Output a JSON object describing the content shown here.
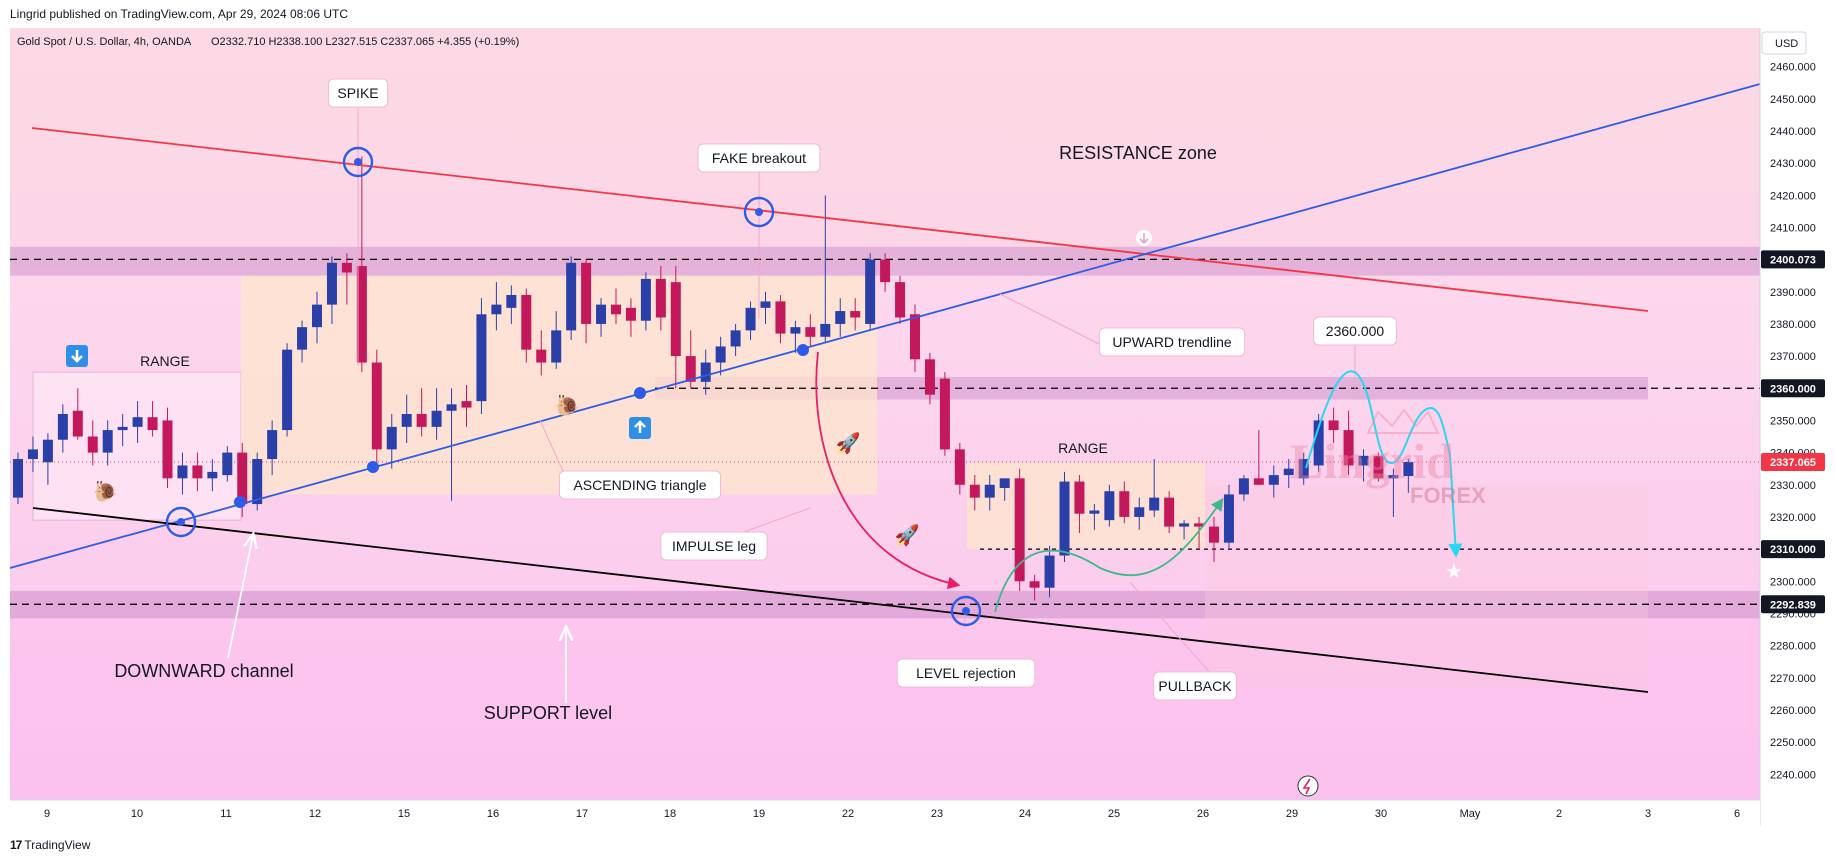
{
  "header": {
    "published_by": "Lingrid published on TradingView.com, Apr 29, 2024 08:06 UTC"
  },
  "footer": {
    "logo_text": "TradingView"
  },
  "chart_data": {
    "type": "candlestick",
    "symbol_line": "Gold Spot / U.S. Dollar, 4h, OANDA",
    "ohlc_line": "O2332.710  H2338.100  L2327.515  C2337.065  +4.355 (+0.19%)",
    "currency": "USD",
    "ylim": [
      2232,
      2472
    ],
    "y_ticks": [
      2240,
      2250,
      2260,
      2270,
      2280,
      2290,
      2300,
      2310,
      2320,
      2330,
      2340,
      2350,
      2360,
      2370,
      2380,
      2390,
      2400,
      2410,
      2420,
      2430,
      2440,
      2450,
      2460
    ],
    "x_ticks": [
      "9",
      "10",
      "11",
      "12",
      "15",
      "16",
      "17",
      "18",
      "19",
      "22",
      "23",
      "24",
      "25",
      "26",
      "29",
      "30",
      "May",
      "2",
      "3",
      "6"
    ],
    "price_labels": [
      {
        "value": 2400.073,
        "text": "2400.073",
        "style": "dark"
      },
      {
        "value": 2360.0,
        "text": "2360.000",
        "style": "dark"
      },
      {
        "value": 2337.065,
        "text": "2337.065",
        "style": "red"
      },
      {
        "value": 2310.0,
        "text": "2310.000",
        "style": "dark"
      },
      {
        "value": 2292.839,
        "text": "2292.839",
        "style": "dark"
      }
    ],
    "colors": {
      "bull": "#2a40a8",
      "bear": "#c3185c",
      "resistance_line": "#f23645",
      "trendline": "#2f5ce6",
      "channel_line": "#000000",
      "projection": "#29d8f0",
      "pullback_arrow": "#3fb88a",
      "impulse_arrow": "#e91e63"
    },
    "candles": [
      {
        "o": 2326,
        "h": 2340,
        "l": 2324,
        "c": 2338
      },
      {
        "o": 2338,
        "h": 2345,
        "l": 2334,
        "c": 2341
      },
      {
        "o": 2337,
        "h": 2346,
        "l": 2330,
        "c": 2344
      },
      {
        "o": 2344,
        "h": 2355,
        "l": 2340,
        "c": 2352
      },
      {
        "o": 2353,
        "h": 2360,
        "l": 2344,
        "c": 2345
      },
      {
        "o": 2345,
        "h": 2350,
        "l": 2336,
        "c": 2340
      },
      {
        "o": 2340,
        "h": 2350,
        "l": 2336,
        "c": 2347
      },
      {
        "o": 2347,
        "h": 2352,
        "l": 2342,
        "c": 2348
      },
      {
        "o": 2348,
        "h": 2356,
        "l": 2343,
        "c": 2351
      },
      {
        "o": 2351,
        "h": 2356,
        "l": 2345,
        "c": 2347
      },
      {
        "o": 2350,
        "h": 2354,
        "l": 2329,
        "c": 2332
      },
      {
        "o": 2332,
        "h": 2340,
        "l": 2327,
        "c": 2336
      },
      {
        "o": 2336,
        "h": 2340,
        "l": 2328,
        "c": 2332
      },
      {
        "o": 2332,
        "h": 2338,
        "l": 2328,
        "c": 2334
      },
      {
        "o": 2333,
        "h": 2342,
        "l": 2331,
        "c": 2340
      },
      {
        "o": 2340,
        "h": 2343,
        "l": 2320,
        "c": 2324
      },
      {
        "o": 2324,
        "h": 2340,
        "l": 2322,
        "c": 2338
      },
      {
        "o": 2338,
        "h": 2350,
        "l": 2333,
        "c": 2347
      },
      {
        "o": 2347,
        "h": 2374,
        "l": 2345,
        "c": 2372
      },
      {
        "o": 2372,
        "h": 2381,
        "l": 2368,
        "c": 2379
      },
      {
        "o": 2379,
        "h": 2390,
        "l": 2374,
        "c": 2386
      },
      {
        "o": 2386,
        "h": 2401,
        "l": 2380,
        "c": 2399
      },
      {
        "o": 2399,
        "h": 2402,
        "l": 2386,
        "c": 2396
      },
      {
        "o": 2398,
        "h": 2432,
        "l": 2365,
        "c": 2368
      },
      {
        "o": 2368,
        "h": 2372,
        "l": 2337,
        "c": 2341
      },
      {
        "o": 2341,
        "h": 2352,
        "l": 2335,
        "c": 2348
      },
      {
        "o": 2348,
        "h": 2358,
        "l": 2343,
        "c": 2352
      },
      {
        "o": 2352,
        "h": 2360,
        "l": 2345,
        "c": 2348
      },
      {
        "o": 2348,
        "h": 2360,
        "l": 2344,
        "c": 2353
      },
      {
        "o": 2353,
        "h": 2360,
        "l": 2325,
        "c": 2355
      },
      {
        "o": 2356,
        "h": 2361,
        "l": 2348,
        "c": 2354
      },
      {
        "o": 2356,
        "h": 2388,
        "l": 2352,
        "c": 2383
      },
      {
        "o": 2383,
        "h": 2393,
        "l": 2378,
        "c": 2386
      },
      {
        "o": 2385,
        "h": 2392,
        "l": 2380,
        "c": 2389
      },
      {
        "o": 2389,
        "h": 2391,
        "l": 2368,
        "c": 2372
      },
      {
        "o": 2372,
        "h": 2378,
        "l": 2364,
        "c": 2368
      },
      {
        "o": 2368,
        "h": 2384,
        "l": 2366,
        "c": 2378
      },
      {
        "o": 2378,
        "h": 2401,
        "l": 2375,
        "c": 2399
      },
      {
        "o": 2399,
        "h": 2400,
        "l": 2374,
        "c": 2380
      },
      {
        "o": 2380,
        "h": 2388,
        "l": 2376,
        "c": 2386
      },
      {
        "o": 2386,
        "h": 2391,
        "l": 2380,
        "c": 2383
      },
      {
        "o": 2385,
        "h": 2388,
        "l": 2376,
        "c": 2381
      },
      {
        "o": 2381,
        "h": 2396,
        "l": 2378,
        "c": 2394
      },
      {
        "o": 2394,
        "h": 2398,
        "l": 2378,
        "c": 2382
      },
      {
        "o": 2393,
        "h": 2398,
        "l": 2360,
        "c": 2370
      },
      {
        "o": 2370,
        "h": 2378,
        "l": 2360,
        "c": 2362
      },
      {
        "o": 2362,
        "h": 2372,
        "l": 2358,
        "c": 2368
      },
      {
        "o": 2368,
        "h": 2376,
        "l": 2364,
        "c": 2373
      },
      {
        "o": 2373,
        "h": 2380,
        "l": 2370,
        "c": 2378
      },
      {
        "o": 2378,
        "h": 2387,
        "l": 2375,
        "c": 2385
      },
      {
        "o": 2385,
        "h": 2390,
        "l": 2380,
        "c": 2387
      },
      {
        "o": 2387,
        "h": 2389,
        "l": 2374,
        "c": 2377
      },
      {
        "o": 2377,
        "h": 2381,
        "l": 2371,
        "c": 2379
      },
      {
        "o": 2379,
        "h": 2383,
        "l": 2373,
        "c": 2376
      },
      {
        "o": 2376,
        "h": 2420,
        "l": 2374,
        "c": 2380
      },
      {
        "o": 2380,
        "h": 2388,
        "l": 2376,
        "c": 2384
      },
      {
        "o": 2384,
        "h": 2388,
        "l": 2378,
        "c": 2382
      },
      {
        "o": 2380,
        "h": 2402,
        "l": 2378,
        "c": 2400
      },
      {
        "o": 2400,
        "h": 2402,
        "l": 2390,
        "c": 2393
      },
      {
        "o": 2393,
        "h": 2395,
        "l": 2380,
        "c": 2382
      },
      {
        "o": 2383,
        "h": 2386,
        "l": 2365,
        "c": 2369
      },
      {
        "o": 2369,
        "h": 2371,
        "l": 2355,
        "c": 2358
      },
      {
        "o": 2363,
        "h": 2365,
        "l": 2339,
        "c": 2341
      },
      {
        "o": 2341,
        "h": 2343,
        "l": 2327,
        "c": 2330
      },
      {
        "o": 2330,
        "h": 2333,
        "l": 2322,
        "c": 2326
      },
      {
        "o": 2326,
        "h": 2333,
        "l": 2322,
        "c": 2330
      },
      {
        "o": 2329,
        "h": 2332,
        "l": 2325,
        "c": 2332
      },
      {
        "o": 2332,
        "h": 2335,
        "l": 2297,
        "c": 2300
      },
      {
        "o": 2300,
        "h": 2302,
        "l": 2294,
        "c": 2298
      },
      {
        "o": 2298,
        "h": 2311,
        "l": 2295,
        "c": 2308
      },
      {
        "o": 2308,
        "h": 2334,
        "l": 2306,
        "c": 2331
      },
      {
        "o": 2331,
        "h": 2333,
        "l": 2315,
        "c": 2321
      },
      {
        "o": 2321,
        "h": 2324,
        "l": 2316,
        "c": 2322
      },
      {
        "o": 2319,
        "h": 2330,
        "l": 2317,
        "c": 2328
      },
      {
        "o": 2328,
        "h": 2331,
        "l": 2318,
        "c": 2320
      },
      {
        "o": 2320,
        "h": 2326,
        "l": 2316,
        "c": 2323
      },
      {
        "o": 2322,
        "h": 2338,
        "l": 2320,
        "c": 2326
      },
      {
        "o": 2326,
        "h": 2328,
        "l": 2315,
        "c": 2317
      },
      {
        "o": 2317,
        "h": 2319,
        "l": 2313,
        "c": 2318
      },
      {
        "o": 2318,
        "h": 2320,
        "l": 2310,
        "c": 2317
      },
      {
        "o": 2317,
        "h": 2320,
        "l": 2306,
        "c": 2312
      },
      {
        "o": 2312,
        "h": 2330,
        "l": 2310,
        "c": 2327
      },
      {
        "o": 2327,
        "h": 2333,
        "l": 2325,
        "c": 2332
      },
      {
        "o": 2332,
        "h": 2347,
        "l": 2330,
        "c": 2330
      },
      {
        "o": 2330,
        "h": 2336,
        "l": 2326,
        "c": 2333
      },
      {
        "o": 2333,
        "h": 2338,
        "l": 2329,
        "c": 2335
      },
      {
        "o": 2332,
        "h": 2340,
        "l": 2330,
        "c": 2338
      },
      {
        "o": 2336,
        "h": 2352,
        "l": 2334,
        "c": 2350
      },
      {
        "o": 2350,
        "h": 2354,
        "l": 2343,
        "c": 2347
      },
      {
        "o": 2347,
        "h": 2353,
        "l": 2333,
        "c": 2336
      },
      {
        "o": 2336,
        "h": 2341,
        "l": 2331,
        "c": 2339
      },
      {
        "o": 2339,
        "h": 2340,
        "l": 2331,
        "c": 2332
      },
      {
        "o": 2332,
        "h": 2335,
        "l": 2320,
        "c": 2333
      },
      {
        "o": 2332.71,
        "h": 2338.1,
        "l": 2327.515,
        "c": 2337.065
      }
    ],
    "annotations": [
      {
        "text": "SPIKE"
      },
      {
        "text": "FAKE breakout"
      },
      {
        "text": "RESISTANCE zone"
      },
      {
        "text": "RANGE"
      },
      {
        "text": "UPWARD trendline"
      },
      {
        "text": "2360.000"
      },
      {
        "text": "ASCENDING triangle"
      },
      {
        "text": "IMPULSE leg"
      },
      {
        "text": "RANGE"
      },
      {
        "text": "LEVEL rejection"
      },
      {
        "text": "PULLBACK"
      },
      {
        "text": "DOWNWARD channel"
      },
      {
        "text": "SUPPORT level"
      }
    ],
    "watermark": {
      "line1": "Lingrid",
      "line2": "FOREX"
    }
  }
}
